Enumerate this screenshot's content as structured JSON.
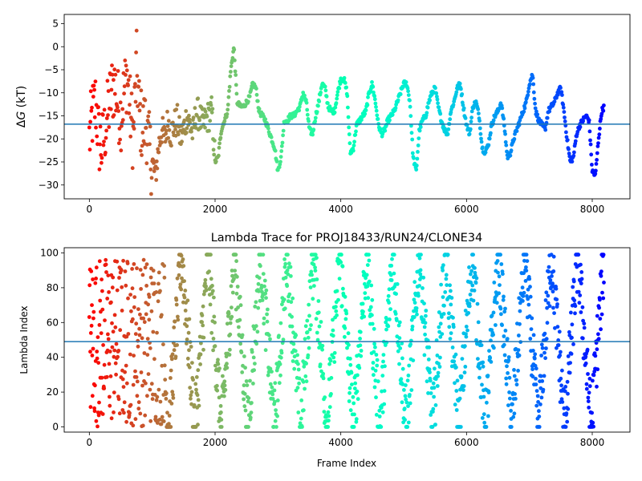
{
  "chart_data": [
    {
      "type": "scatter",
      "title": "",
      "xlabel": "",
      "ylabel": "ΔG (kT)",
      "ylabel_prefix": "Δ",
      "ylabel_var": "G",
      "ylabel_rest": " (kT)",
      "xlim": [
        -400,
        8600
      ],
      "ylim": [
        -33,
        7
      ],
      "xticks": [
        0,
        2000,
        4000,
        6000,
        8000
      ],
      "xtick_labels": [
        "0",
        "2000",
        "4000",
        "6000",
        "8000"
      ],
      "yticks": [
        5,
        0,
        -5,
        -10,
        -15,
        -20,
        -25,
        -30
      ],
      "ytick_labels": [
        "5",
        "0",
        "−5",
        "−10",
        "−15",
        "−20",
        "−25",
        "−30"
      ],
      "hline": -16.8,
      "hline_color": "#1f77b4",
      "n_frames": 8190,
      "colormap": "rainbow",
      "colormap_direction": "reversed",
      "grid": false,
      "series": [
        {
          "values_anchor_x": [
            0,
            50,
            100,
            150,
            200,
            250,
            300,
            350,
            400,
            450,
            500,
            550,
            600,
            650,
            700,
            750,
            800,
            850,
            900,
            950,
            1000,
            1050,
            1100,
            1150,
            1200,
            1250,
            1300,
            1350,
            1400,
            1450,
            1500,
            1550,
            1600,
            1650,
            1700,
            1750,
            1800,
            1850,
            1900,
            1950,
            2000,
            2050,
            2100,
            2150,
            2200,
            2250,
            2300,
            2350,
            2400,
            2450,
            2500,
            2550,
            2600,
            2650,
            2700,
            2750,
            2800,
            2850,
            2900,
            2950,
            3000,
            3050,
            3100,
            3150,
            3200,
            3250,
            3300,
            3350,
            3400,
            3450,
            3500,
            3550,
            3600,
            3650,
            3700,
            3750,
            3800,
            3850,
            3900,
            3950,
            4000,
            4050,
            4100,
            4150,
            4200,
            4250,
            4300,
            4350,
            4400,
            4450,
            4500,
            4550,
            4600,
            4650,
            4700,
            4750,
            4800,
            4850,
            4900,
            4950,
            5000,
            5050,
            5100,
            5150,
            5200,
            5250,
            5300,
            5350,
            5400,
            5450,
            5500,
            5550,
            5600,
            5650,
            5700,
            5750,
            5800,
            5850,
            5900,
            5950,
            6000,
            6050,
            6100,
            6150,
            6200,
            6250,
            6300,
            6350,
            6400,
            6450,
            6500,
            6550,
            6600,
            6650,
            6700,
            6750,
            6800,
            6850,
            6900,
            6950,
            7000,
            7050,
            7100,
            7150,
            7200,
            7250,
            7300,
            7350,
            7400,
            7450,
            7500,
            7550,
            7600,
            7650,
            7700,
            7750,
            7800,
            7850,
            7900,
            7950,
            8000,
            8050,
            8100,
            8150,
            8190
          ],
          "values": [
            -20,
            -15,
            -12,
            -20,
            -22,
            -18,
            -14,
            -10,
            -8,
            -12,
            -15,
            -10,
            -6,
            -14,
            -20,
            -4,
            -15,
            -18,
            -16,
            -22,
            -25,
            -28,
            -22,
            -18,
            -20,
            -16,
            -19,
            -17,
            -16,
            -20,
            -18,
            -15,
            -17,
            -19,
            -14,
            -15,
            -17,
            -16,
            -15,
            -14,
            -25,
            -24,
            -18,
            -16,
            -14,
            -5,
            0,
            -12,
            -13,
            -13,
            -12,
            -11,
            -8,
            -9,
            -14,
            -15,
            -16,
            -18,
            -20,
            -22,
            -27,
            -24,
            -16,
            -16,
            -15,
            -15,
            -14,
            -13,
            -10,
            -12,
            -18,
            -19,
            -15,
            -12,
            -8,
            -9,
            -13,
            -14,
            -14,
            -10,
            -7,
            -7,
            -10,
            -23,
            -22,
            -17,
            -16,
            -15,
            -14,
            -10,
            -8,
            -12,
            -17,
            -19,
            -18,
            -16,
            -15,
            -14,
            -12,
            -10,
            -8,
            -8,
            -12,
            -24,
            -27,
            -18,
            -16,
            -15,
            -12,
            -10,
            -9,
            -13,
            -16,
            -18,
            -19,
            -14,
            -12,
            -9,
            -8,
            -13,
            -17,
            -19,
            -13,
            -12,
            -15,
            -22,
            -23,
            -21,
            -17,
            -15,
            -14,
            -12,
            -17,
            -24,
            -23,
            -20,
            -18,
            -16,
            -14,
            -12,
            -8,
            -6,
            -14,
            -16,
            -17,
            -18,
            -14,
            -13,
            -12,
            -10,
            -9,
            -14,
            -20,
            -25,
            -24,
            -19,
            -17,
            -16,
            -15,
            -16,
            -27,
            -28,
            -20,
            -14,
            -13
          ]
        }
      ]
    },
    {
      "type": "scatter",
      "title": "Lambda Trace for PROJ18433/RUN24/CLONE34",
      "xlabel": "Frame Index",
      "ylabel": "Lambda Index",
      "xlim": [
        -400,
        8600
      ],
      "ylim": [
        -3,
        103
      ],
      "xticks": [
        0,
        2000,
        4000,
        6000,
        8000
      ],
      "xtick_labels": [
        "0",
        "2000",
        "4000",
        "6000",
        "8000"
      ],
      "yticks": [
        0,
        20,
        40,
        60,
        80,
        100
      ],
      "ytick_labels": [
        "0",
        "20",
        "40",
        "60",
        "80",
        "100"
      ],
      "hline": 49,
      "hline_color": "#1f77b4",
      "n_frames": 8190,
      "colormap": "rainbow",
      "colormap_direction": "reversed",
      "grid": false,
      "series": [
        {
          "range": [
            0,
            99
          ],
          "sweep_period_frames": 420
        }
      ]
    }
  ]
}
